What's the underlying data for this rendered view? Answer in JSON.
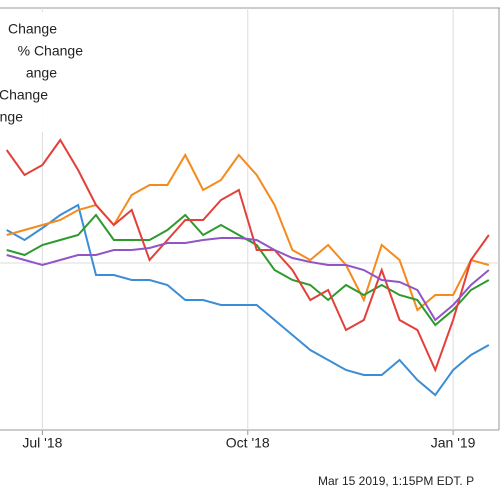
{
  "chart_data": {
    "type": "line",
    "x": [
      -16,
      -8,
      0,
      8,
      16,
      24,
      32,
      40,
      48,
      56,
      64,
      72,
      80,
      88,
      96,
      104,
      112,
      120,
      128,
      136,
      144,
      152,
      160,
      168,
      176,
      184,
      192,
      200
    ],
    "series": [
      {
        "name": "Change",
        "color": "#3b8ed6",
        "values": [
          200,
          190,
          202,
          215,
          225,
          155,
          155,
          150,
          150,
          145,
          130,
          130,
          125,
          125,
          125,
          110,
          95,
          80,
          70,
          60,
          55,
          55,
          70,
          50,
          35,
          60,
          75,
          85
        ]
      },
      {
        "name": "% Change",
        "color": "#f58a1f",
        "values": [
          195,
          200,
          205,
          210,
          220,
          225,
          205,
          235,
          245,
          245,
          275,
          240,
          250,
          275,
          255,
          225,
          180,
          170,
          185,
          165,
          130,
          185,
          170,
          120,
          135,
          135,
          170,
          165
        ]
      },
      {
        "name": "ange",
        "color": "#2e9a2e",
        "values": [
          180,
          175,
          185,
          190,
          195,
          215,
          190,
          190,
          190,
          200,
          215,
          195,
          205,
          195,
          185,
          160,
          150,
          145,
          130,
          145,
          135,
          145,
          135,
          130,
          105,
          120,
          140,
          150
        ]
      },
      {
        "name": "Change",
        "color": "#e3403a",
        "values": [
          280,
          255,
          265,
          290,
          260,
          225,
          205,
          220,
          170,
          190,
          210,
          210,
          230,
          240,
          180,
          180,
          160,
          130,
          140,
          100,
          110,
          160,
          110,
          100,
          60,
          110,
          170,
          195
        ]
      },
      {
        "name": "nge",
        "color": "#9155c6",
        "values": [
          175,
          170,
          165,
          170,
          175,
          175,
          180,
          180,
          182,
          187,
          187,
          190,
          192,
          192,
          190,
          180,
          172,
          168,
          165,
          165,
          160,
          150,
          148,
          140,
          110,
          125,
          145,
          160
        ]
      }
    ],
    "xlim": [
      -19,
      205
    ],
    "ylim": [
      0,
      430
    ],
    "xticks": [
      {
        "value": 0,
        "label": "Jul '18"
      },
      {
        "value": 92,
        "label": "Oct '18"
      },
      {
        "value": 184,
        "label": "Jan '19"
      }
    ],
    "grid": true,
    "footer": "Mar 15 2019, 1:15PM EDT.  P"
  }
}
